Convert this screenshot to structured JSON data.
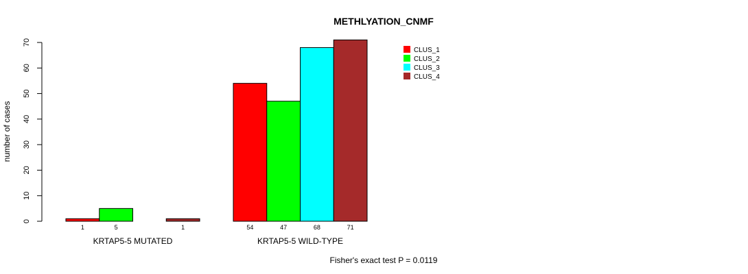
{
  "chart_data": {
    "type": "bar",
    "title": "METHLYATION_CNMF",
    "ylabel": "number of cases",
    "xlabel": "",
    "ylim": [
      0,
      70
    ],
    "yticks": [
      0,
      10,
      20,
      30,
      40,
      50,
      60,
      70
    ],
    "groups": [
      "KRTAP5-5 MUTATED",
      "KRTAP5-5 WILD-TYPE"
    ],
    "series": [
      {
        "name": "CLUS_1",
        "color": "#FF0000",
        "values": [
          1,
          54
        ]
      },
      {
        "name": "CLUS_2",
        "color": "#00FF00",
        "values": [
          5,
          47
        ]
      },
      {
        "name": "CLUS_3",
        "color": "#00FFFF",
        "values": [
          0,
          68
        ]
      },
      {
        "name": "CLUS_4",
        "color": "#A52A2A",
        "values": [
          1,
          71
        ]
      }
    ],
    "bar_labels": [
      [
        "1",
        "5",
        "",
        "1"
      ],
      [
        "54",
        "47",
        "68",
        "71"
      ]
    ],
    "legend": {
      "position": "top-right",
      "entries": [
        "CLUS_1",
        "CLUS_2",
        "CLUS_3",
        "CLUS_4"
      ]
    },
    "annotation": "Fisher's exact test P = 0.0119"
  }
}
